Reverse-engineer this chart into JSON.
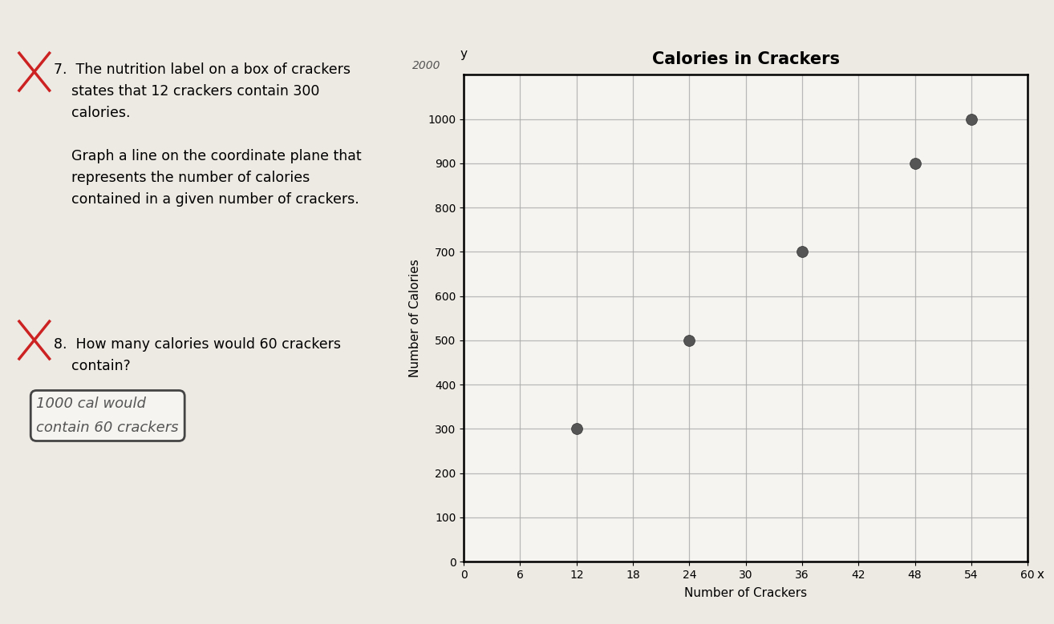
{
  "title": "Calories in Crackers",
  "xlabel": "Number of Crackers",
  "ylabel": "Number of Calories",
  "xlim": [
    0,
    60
  ],
  "ylim": [
    0,
    1100
  ],
  "xticks": [
    0,
    6,
    12,
    18,
    24,
    30,
    36,
    42,
    48,
    54,
    60
  ],
  "yticks": [
    0,
    100,
    200,
    300,
    400,
    500,
    600,
    700,
    800,
    900,
    1000
  ],
  "ytick_minor": [
    50,
    150,
    250,
    350,
    450,
    550,
    650,
    750,
    850,
    950,
    1050
  ],
  "data_points_x": [
    12,
    24,
    36,
    48,
    54
  ],
  "data_points_y": [
    300,
    500,
    700,
    900,
    1000
  ],
  "point_color": "#555555",
  "point_size": 100,
  "background_color": "#ede9e3",
  "plot_bg_color": "#f5f4f0",
  "grid_color": "#aaaaaa",
  "title_fontsize": 15,
  "axis_label_fontsize": 11,
  "tick_fontsize": 10,
  "q7_text": "7.  The nutrition label on a box of crackers\n    states that 12 crackers contain 300\n    calories.\n\n    Graph a line on the coordinate plane that\n    represents the number of calories\n    contained in a given number of crackers.",
  "q8_text": "8.  How many calories would 60 crackers\n    contain?",
  "answer_text": "1000 cal would\ncontain 60 crackers",
  "handwritten_2000": "2000"
}
